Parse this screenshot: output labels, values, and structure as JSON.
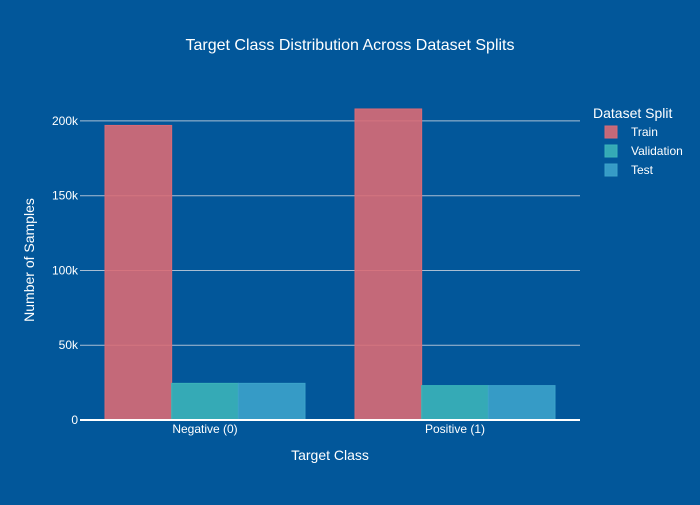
{
  "colors": {
    "background": "#02579a",
    "gridline": "#a9bed3",
    "axis_line": "#ffffff",
    "text": "#ffffff"
  },
  "chart_data": {
    "type": "bar",
    "barmode": "grouped",
    "title": "Target Class Distribution Across Dataset Splits",
    "xlabel": "Target Class",
    "ylabel": "Number of Samples",
    "categories": [
      "Negative (0)",
      "Positive (1)"
    ],
    "series": [
      {
        "name": "Train",
        "color": "#d96b76",
        "values": [
          197000,
          208000
        ]
      },
      {
        "name": "Validation",
        "color": "#3bb4b9",
        "values": [
          24500,
          23000
        ]
      },
      {
        "name": "Test",
        "color": "#3ca3cb",
        "values": [
          24500,
          23000
        ]
      }
    ],
    "ylim": [
      0,
      214000
    ],
    "yticks": [
      {
        "value": 0,
        "label": "0"
      },
      {
        "value": 50000,
        "label": "50k"
      },
      {
        "value": 100000,
        "label": "100k"
      },
      {
        "value": 150000,
        "label": "150k"
      },
      {
        "value": 200000,
        "label": "200k"
      }
    ],
    "grid": true,
    "legend": {
      "title": "Dataset Split",
      "position": "right"
    }
  }
}
